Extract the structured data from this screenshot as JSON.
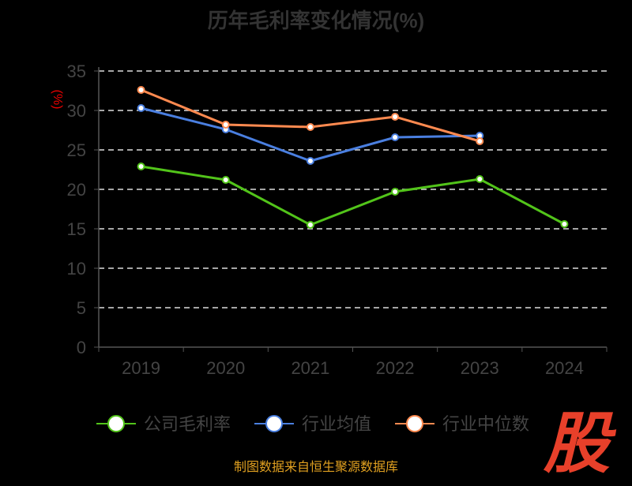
{
  "chart_data": {
    "type": "line",
    "title": "历年毛利率变化情况(%)",
    "ylabel": "(%)",
    "xlabel": "",
    "categories": [
      "2019",
      "2020",
      "2021",
      "2022",
      "2023",
      "2024"
    ],
    "ylim": [
      0,
      35
    ],
    "yticks": [
      0,
      5,
      10,
      15,
      20,
      25,
      30,
      35
    ],
    "grid": true,
    "legend_position": "bottom",
    "series": [
      {
        "name": "公司毛利率",
        "color": "#52c41a",
        "values": [
          22.9,
          21.2,
          15.5,
          19.7,
          21.3,
          15.6
        ]
      },
      {
        "name": "行业均值",
        "color": "#4a7fe0",
        "values": [
          30.3,
          27.6,
          23.6,
          26.6,
          26.8,
          null
        ]
      },
      {
        "name": "行业中位数",
        "color": "#ff8a50",
        "values": [
          32.6,
          28.2,
          27.9,
          29.2,
          26.1,
          null
        ]
      }
    ]
  },
  "source": "制图数据来自恒生聚源数据库",
  "logo_text": "股"
}
